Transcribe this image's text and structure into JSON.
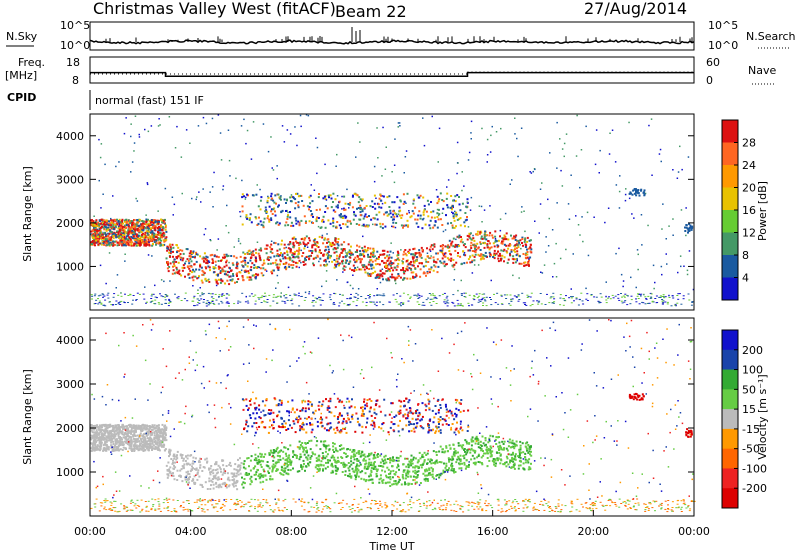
{
  "header": {
    "title": "Christmas Valley West (fitACF)",
    "beam": "Beam 22",
    "date": "27/Aug/2014"
  },
  "side_labels": {
    "nsky": "N.Sky",
    "nsearch": "N.Search",
    "freq_line1": "Freq.",
    "freq_line2": "[MHz]",
    "nave": "Nave",
    "cpid": "CPID",
    "cpid_value": "normal (fast) 151 IF"
  },
  "chart_data": [
    {
      "type": "line",
      "name": "noise",
      "left_ticks": [
        "10^5",
        "10^0"
      ],
      "right_ticks": [
        "10^5",
        "10^0"
      ]
    },
    {
      "type": "line",
      "name": "frequency_nave",
      "left_ticks": [
        "18",
        "8"
      ],
      "right_ticks": [
        "60",
        "0"
      ],
      "freq_steps": [
        {
          "t": 0.0,
          "f": 12.0
        },
        {
          "t": 3.0,
          "f": 12.0
        },
        {
          "t": 3.0,
          "f": 10.6
        },
        {
          "t": 15.0,
          "f": 10.6
        },
        {
          "t": 15.0,
          "f": 12.0
        },
        {
          "t": 24.0,
          "f": 12.0
        }
      ]
    },
    {
      "type": "heatmap",
      "name": "power",
      "ylabel": "Slant Range [km]",
      "yticks": [
        "4000",
        "3000",
        "2000",
        "1000"
      ],
      "colorbar_label": "Power [dB]",
      "colorbar_ticks": [
        "28",
        "24",
        "20",
        "16",
        "12",
        "8",
        "4"
      ],
      "colorbar_colors": [
        "#dd1111",
        "#ff6622",
        "#ff9900",
        "#e8c200",
        "#66cc33",
        "#449966",
        "#1a5aa0",
        "#1111cc"
      ]
    },
    {
      "type": "heatmap",
      "name": "velocity",
      "ylabel": "Slant Range [km]",
      "yticks": [
        "4000",
        "3000",
        "2000",
        "1000"
      ],
      "colorbar_label": "Velocity [m s⁻¹]",
      "colorbar_ticks": [
        "200",
        "100",
        "50",
        "15",
        "-15",
        "-50",
        "-100",
        "-200"
      ],
      "colorbar_colors": [
        "#1111cc",
        "#1a44aa",
        "#33aa33",
        "#66cc44",
        "#bbbbbb",
        "#ff9900",
        "#ff6600",
        "#ee2222",
        "#dd0000"
      ],
      "xlabel": "Time UT",
      "xticks": [
        "00:00",
        "04:00",
        "08:00",
        "12:00",
        "16:00",
        "20:00",
        "00:00"
      ]
    }
  ]
}
